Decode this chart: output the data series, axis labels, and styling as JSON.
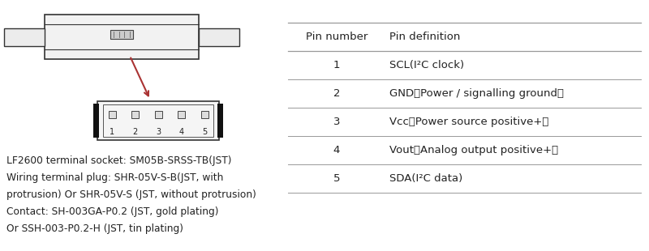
{
  "bg_color": "#ffffff",
  "table_headers": [
    "Pin number",
    "Pin definition"
  ],
  "table_rows": [
    [
      "1",
      "SCL(I²C clock)"
    ],
    [
      "2",
      "GND（Power / signalling ground）"
    ],
    [
      "3",
      "Vcc（Power source positive+）"
    ],
    [
      "4",
      "Vout（Analog output positive+）"
    ],
    [
      "5",
      "SDA(I²C data)"
    ]
  ],
  "text_color": "#222222",
  "line_color": "#999999",
  "bottom_texts": [
    "LF2600 terminal socket: SM05B-SRSS-TB(JST)",
    "Wiring terminal plug: SHR-05V-S-B(JST, with",
    "protrusion) Or SHR-05V-S (JST, without protrusion)",
    "Contact: SH-003GA-P0.2 (JST, gold plating)",
    "Or SSH-003-P0.2-H (JST, tin plating)"
  ],
  "font_size_table": 9.5,
  "font_size_bottom": 8.8
}
